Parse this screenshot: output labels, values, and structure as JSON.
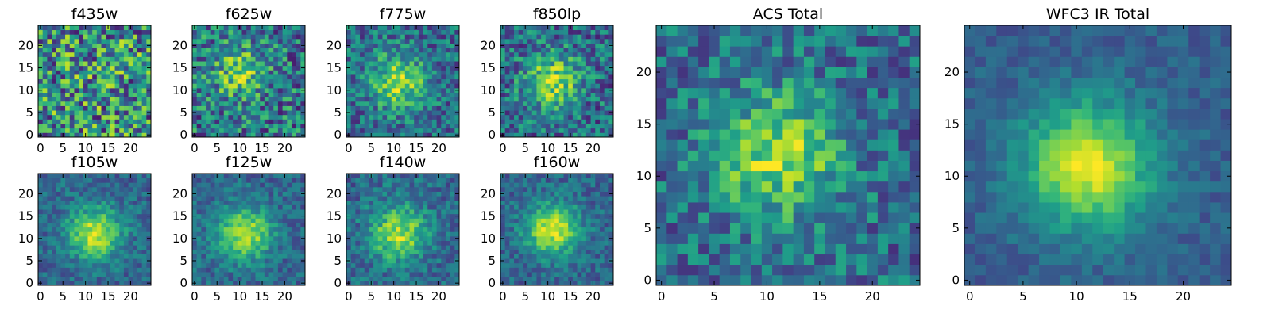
{
  "figure": {
    "type": "heatmap",
    "colormap": "viridis"
  },
  "chart_data": [
    {
      "type": "heatmap",
      "title": "f435w",
      "grid": [
        25,
        25
      ],
      "xticks": [
        0,
        5,
        10,
        15,
        20
      ],
      "yticks": [
        0,
        5,
        10,
        15,
        20
      ],
      "xlim": [
        0,
        24
      ],
      "ylim": [
        0,
        24
      ],
      "peak": [
        12,
        12
      ],
      "peak_strength": 0.02,
      "noise_level": 0.85
    },
    {
      "type": "heatmap",
      "title": "f625w",
      "grid": [
        25,
        25
      ],
      "xticks": [
        0,
        5,
        10,
        15,
        20
      ],
      "yticks": [
        0,
        5,
        10,
        15,
        20
      ],
      "xlim": [
        0,
        24
      ],
      "ylim": [
        0,
        24
      ],
      "peak": [
        10,
        14
      ],
      "peak_strength": 0.45,
      "noise_level": 0.65
    },
    {
      "type": "heatmap",
      "title": "f775w",
      "grid": [
        25,
        25
      ],
      "xticks": [
        0,
        5,
        10,
        15,
        20
      ],
      "yticks": [
        0,
        5,
        10,
        15,
        20
      ],
      "xlim": [
        0,
        24
      ],
      "ylim": [
        0,
        24
      ],
      "peak": [
        11,
        12
      ],
      "peak_strength": 0.65,
      "noise_level": 0.5
    },
    {
      "type": "heatmap",
      "title": "f850lp",
      "grid": [
        25,
        25
      ],
      "xticks": [
        0,
        5,
        10,
        15,
        20
      ],
      "yticks": [
        0,
        5,
        10,
        15,
        20
      ],
      "xlim": [
        0,
        24
      ],
      "ylim": [
        0,
        24
      ],
      "peak": [
        11,
        12
      ],
      "peak_strength": 0.65,
      "noise_level": 0.55
    },
    {
      "type": "heatmap",
      "title": "f105w",
      "grid": [
        25,
        25
      ],
      "xticks": [
        0,
        5,
        10,
        15,
        20
      ],
      "yticks": [
        0,
        5,
        10,
        15,
        20
      ],
      "xlim": [
        0,
        24
      ],
      "ylim": [
        0,
        24
      ],
      "peak": [
        12,
        11
      ],
      "peak_strength": 0.75,
      "noise_level": 0.3
    },
    {
      "type": "heatmap",
      "title": "f125w",
      "grid": [
        25,
        25
      ],
      "xticks": [
        0,
        5,
        10,
        15,
        20
      ],
      "yticks": [
        0,
        5,
        10,
        15,
        20
      ],
      "xlim": [
        0,
        24
      ],
      "ylim": [
        0,
        24
      ],
      "peak": [
        11,
        11
      ],
      "peak_strength": 0.75,
      "noise_level": 0.3
    },
    {
      "type": "heatmap",
      "title": "f140w",
      "grid": [
        25,
        25
      ],
      "xticks": [
        0,
        5,
        10,
        15,
        20
      ],
      "yticks": [
        0,
        5,
        10,
        15,
        20
      ],
      "xlim": [
        0,
        24
      ],
      "ylim": [
        0,
        24
      ],
      "peak": [
        11,
        11
      ],
      "peak_strength": 0.7,
      "noise_level": 0.35
    },
    {
      "type": "heatmap",
      "title": "f160w",
      "grid": [
        25,
        25
      ],
      "xticks": [
        0,
        5,
        10,
        15,
        20
      ],
      "yticks": [
        0,
        5,
        10,
        15,
        20
      ],
      "xlim": [
        0,
        24
      ],
      "ylim": [
        0,
        24
      ],
      "peak": [
        11,
        12
      ],
      "peak_strength": 0.8,
      "noise_level": 0.3
    },
    {
      "type": "heatmap",
      "title": "ACS Total",
      "grid": [
        25,
        25
      ],
      "xticks": [
        0,
        5,
        10,
        15,
        20
      ],
      "yticks": [
        0,
        5,
        10,
        15,
        20
      ],
      "xlim": [
        0,
        24
      ],
      "ylim": [
        0,
        24
      ],
      "peak": [
        11,
        12
      ],
      "peak_strength": 0.65,
      "noise_level": 0.45
    },
    {
      "type": "heatmap",
      "title": "WFC3 IR Total",
      "grid": [
        25,
        25
      ],
      "xticks": [
        0,
        5,
        10,
        15,
        20
      ],
      "yticks": [
        0,
        5,
        10,
        15,
        20
      ],
      "xlim": [
        0,
        24
      ],
      "ylim": [
        0,
        24
      ],
      "peak": [
        11,
        11
      ],
      "peak_strength": 0.9,
      "noise_level": 0.18
    }
  ]
}
